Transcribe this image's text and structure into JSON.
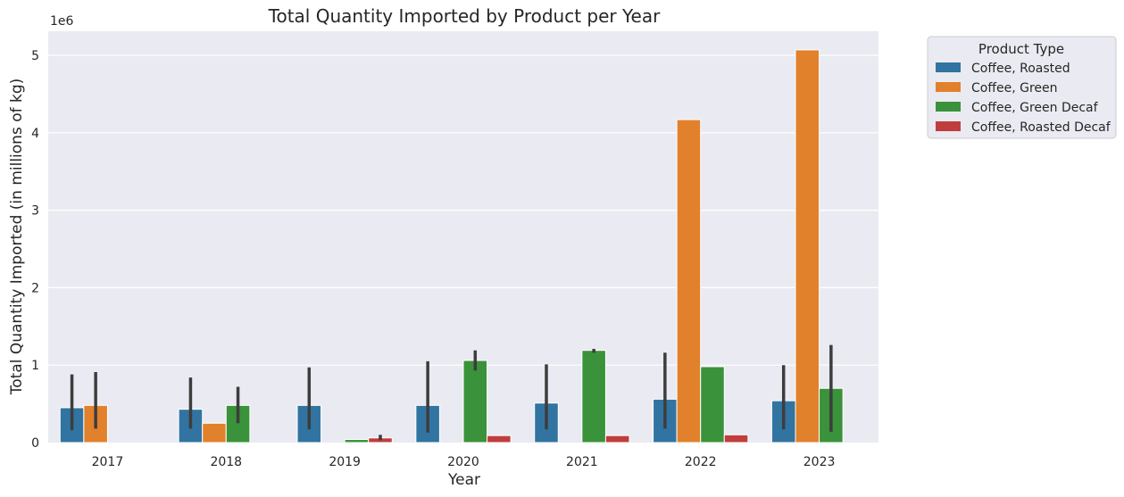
{
  "chart_data": {
    "type": "bar",
    "title": "Total Quantity Imported by Product per Year",
    "xlabel": "Year",
    "ylabel": "Total Quantity Imported (in millions of kg)",
    "y_offset_label": "1e6",
    "ylim": [
      0,
      5.3
    ],
    "yticks": [
      "0",
      "1",
      "2",
      "3",
      "4",
      "5"
    ],
    "grid": true,
    "legend_placement": "outside upper-right",
    "legend_title": "Product Type",
    "categories": [
      "2017",
      "2018",
      "2019",
      "2020",
      "2021",
      "2022",
      "2023"
    ],
    "series": [
      {
        "name": "Coffee, Roasted",
        "color": "#3274a1",
        "values": [
          0.45,
          0.43,
          0.48,
          0.48,
          0.51,
          0.56,
          0.54
        ],
        "error_low": [
          0.16,
          0.18,
          0.17,
          0.13,
          0.17,
          0.18,
          0.17
        ],
        "error_high": [
          0.88,
          0.84,
          0.97,
          1.05,
          1.01,
          1.16,
          1.0
        ]
      },
      {
        "name": "Coffee, Green",
        "color": "#e1812c",
        "values": [
          0.48,
          0.25,
          null,
          null,
          null,
          4.17,
          5.07
        ],
        "error_low": [
          0.18,
          null,
          null,
          null,
          null,
          null,
          null
        ],
        "error_high": [
          0.91,
          null,
          null,
          null,
          null,
          null,
          null
        ]
      },
      {
        "name": "Coffee, Green Decaf",
        "color": "#3a923a",
        "values": [
          null,
          0.48,
          0.04,
          1.06,
          1.19,
          0.98,
          0.7
        ],
        "error_low": [
          null,
          0.25,
          null,
          0.93,
          1.16,
          null,
          0.14
        ],
        "error_high": [
          null,
          0.72,
          null,
          1.19,
          1.21,
          null,
          1.26
        ]
      },
      {
        "name": "Coffee, Roasted Decaf",
        "color": "#c03d3e",
        "values": [
          null,
          null,
          0.06,
          0.09,
          0.09,
          0.1,
          null
        ],
        "error_low": [
          null,
          null,
          0.03,
          null,
          null,
          null,
          null
        ],
        "error_high": [
          null,
          null,
          0.1,
          null,
          null,
          null,
          null
        ]
      }
    ]
  }
}
